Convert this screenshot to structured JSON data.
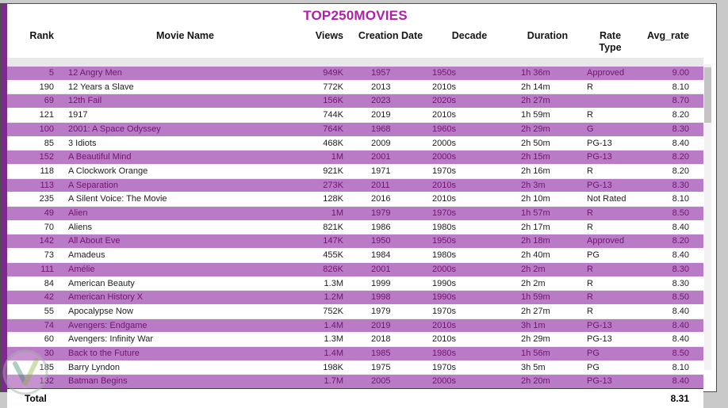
{
  "title": "TOP250MOVIES",
  "columns": [
    {
      "key": "rank",
      "label": "Rank"
    },
    {
      "key": "movie_name",
      "label": "Movie Name"
    },
    {
      "key": "views",
      "label": "Views"
    },
    {
      "key": "creation_date",
      "label": "Creation Date"
    },
    {
      "key": "decade",
      "label": "Decade"
    },
    {
      "key": "duration",
      "label": "Duration"
    },
    {
      "key": "rate_type",
      "label": "Rate Type"
    },
    {
      "key": "avg_rate",
      "label": "Avg_rate"
    }
  ],
  "rows": [
    {
      "rank": "5",
      "movie_name": "12 Angry Men",
      "views": "949K",
      "creation_date": "1957",
      "decade": "1950s",
      "duration": "1h 36m",
      "rate_type": "Approved",
      "avg_rate": "9.00",
      "highlight": true
    },
    {
      "rank": "190",
      "movie_name": "12 Years a Slave",
      "views": "772K",
      "creation_date": "2013",
      "decade": "2010s",
      "duration": "2h 14m",
      "rate_type": "R",
      "avg_rate": "8.10",
      "highlight": false
    },
    {
      "rank": "69",
      "movie_name": "12th Fail",
      "views": "156K",
      "creation_date": "2023",
      "decade": "2020s",
      "duration": "2h 27m",
      "rate_type": "",
      "avg_rate": "8.70",
      "highlight": true
    },
    {
      "rank": "121",
      "movie_name": "1917",
      "views": "744K",
      "creation_date": "2019",
      "decade": "2010s",
      "duration": "1h 59m",
      "rate_type": "R",
      "avg_rate": "8.20",
      "highlight": false
    },
    {
      "rank": "100",
      "movie_name": "2001: A Space Odyssey",
      "views": "764K",
      "creation_date": "1968",
      "decade": "1960s",
      "duration": "2h 29m",
      "rate_type": "G",
      "avg_rate": "8.30",
      "highlight": true
    },
    {
      "rank": "85",
      "movie_name": "3 Idiots",
      "views": "468K",
      "creation_date": "2009",
      "decade": "2000s",
      "duration": "2h 50m",
      "rate_type": "PG-13",
      "avg_rate": "8.40",
      "highlight": false
    },
    {
      "rank": "152",
      "movie_name": "A Beautiful Mind",
      "views": "1M",
      "creation_date": "2001",
      "decade": "2000s",
      "duration": "2h 15m",
      "rate_type": "PG-13",
      "avg_rate": "8.20",
      "highlight": true
    },
    {
      "rank": "118",
      "movie_name": "A Clockwork Orange",
      "views": "921K",
      "creation_date": "1971",
      "decade": "1970s",
      "duration": "2h 16m",
      "rate_type": "R",
      "avg_rate": "8.20",
      "highlight": false
    },
    {
      "rank": "113",
      "movie_name": "A Separation",
      "views": "273K",
      "creation_date": "2011",
      "decade": "2010s",
      "duration": "2h 3m",
      "rate_type": "PG-13",
      "avg_rate": "8.30",
      "highlight": true
    },
    {
      "rank": "235",
      "movie_name": "A Silent Voice: The Movie",
      "views": "128K",
      "creation_date": "2016",
      "decade": "2010s",
      "duration": "2h 10m",
      "rate_type": "Not Rated",
      "avg_rate": "8.10",
      "highlight": false
    },
    {
      "rank": "49",
      "movie_name": "Alien",
      "views": "1M",
      "creation_date": "1979",
      "decade": "1970s",
      "duration": "1h 57m",
      "rate_type": "R",
      "avg_rate": "8.50",
      "highlight": true
    },
    {
      "rank": "70",
      "movie_name": "Aliens",
      "views": "821K",
      "creation_date": "1986",
      "decade": "1980s",
      "duration": "2h 17m",
      "rate_type": "R",
      "avg_rate": "8.40",
      "highlight": false
    },
    {
      "rank": "142",
      "movie_name": "All About Eve",
      "views": "147K",
      "creation_date": "1950",
      "decade": "1950s",
      "duration": "2h 18m",
      "rate_type": "Approved",
      "avg_rate": "8.20",
      "highlight": true
    },
    {
      "rank": "73",
      "movie_name": "Amadeus",
      "views": "455K",
      "creation_date": "1984",
      "decade": "1980s",
      "duration": "2h 40m",
      "rate_type": "PG",
      "avg_rate": "8.40",
      "highlight": false
    },
    {
      "rank": "111",
      "movie_name": "Amélie",
      "views": "826K",
      "creation_date": "2001",
      "decade": "2000s",
      "duration": "2h 2m",
      "rate_type": "R",
      "avg_rate": "8.30",
      "highlight": true
    },
    {
      "rank": "84",
      "movie_name": "American Beauty",
      "views": "1.3M",
      "creation_date": "1999",
      "decade": "1990s",
      "duration": "2h 2m",
      "rate_type": "R",
      "avg_rate": "8.30",
      "highlight": false
    },
    {
      "rank": "42",
      "movie_name": "American History X",
      "views": "1.2M",
      "creation_date": "1998",
      "decade": "1990s",
      "duration": "1h 59m",
      "rate_type": "R",
      "avg_rate": "8.50",
      "highlight": true
    },
    {
      "rank": "55",
      "movie_name": "Apocalypse Now",
      "views": "752K",
      "creation_date": "1979",
      "decade": "1970s",
      "duration": "2h 27m",
      "rate_type": "R",
      "avg_rate": "8.40",
      "highlight": false
    },
    {
      "rank": "74",
      "movie_name": "Avengers: Endgame",
      "views": "1.4M",
      "creation_date": "2019",
      "decade": "2010s",
      "duration": "3h 1m",
      "rate_type": "PG-13",
      "avg_rate": "8.40",
      "highlight": true
    },
    {
      "rank": "60",
      "movie_name": "Avengers: Infinity War",
      "views": "1.3M",
      "creation_date": "2018",
      "decade": "2010s",
      "duration": "2h 29m",
      "rate_type": "PG-13",
      "avg_rate": "8.40",
      "highlight": false
    },
    {
      "rank": "30",
      "movie_name": "Back to the Future",
      "views": "1.4M",
      "creation_date": "1985",
      "decade": "1980s",
      "duration": "1h 56m",
      "rate_type": "PG",
      "avg_rate": "8.50",
      "highlight": true
    },
    {
      "rank": "185",
      "movie_name": "Barry Lyndon",
      "views": "198K",
      "creation_date": "1975",
      "decade": "1970s",
      "duration": "3h 5m",
      "rate_type": "PG",
      "avg_rate": "8.10",
      "highlight": false
    },
    {
      "rank": "132",
      "movie_name": "Batman Begins",
      "views": "1.7M",
      "creation_date": "2005",
      "decade": "2000s",
      "duration": "2h 20m",
      "rate_type": "PG-13",
      "avg_rate": "8.40",
      "highlight": true
    }
  ],
  "total": {
    "label": "Total",
    "avg_rate": "8.31"
  },
  "colors": {
    "title": "#B01FA8",
    "accent_bar": "#7D2A8D",
    "row_highlight_bg": "#BA7BC6",
    "row_highlight_text": "#701570"
  }
}
